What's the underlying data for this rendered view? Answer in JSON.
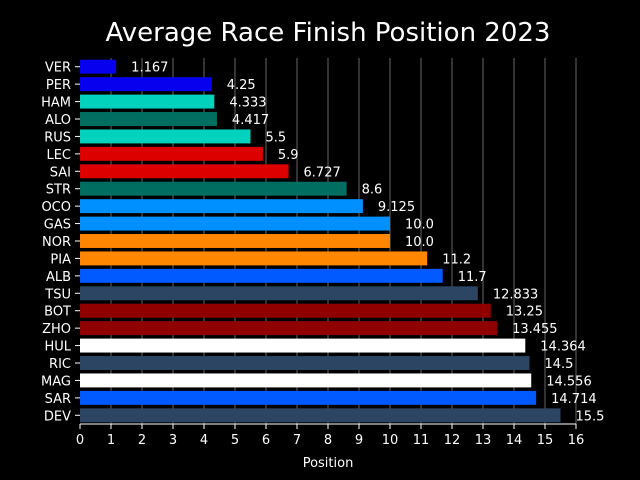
{
  "chart_data": {
    "type": "bar",
    "orientation": "horizontal",
    "title": "Average Race Finish Position 2023",
    "xlabel": "Position",
    "ylabel": "",
    "xlim": [
      0,
      16
    ],
    "xticks": [
      0,
      1,
      2,
      3,
      4,
      5,
      6,
      7,
      8,
      9,
      10,
      11,
      12,
      13,
      14,
      15,
      16
    ],
    "grid": "vertical",
    "categories": [
      "VER",
      "PER",
      "HAM",
      "ALO",
      "RUS",
      "LEC",
      "SAI",
      "STR",
      "OCO",
      "GAS",
      "NOR",
      "PIA",
      "ALB",
      "TSU",
      "BOT",
      "ZHO",
      "HUL",
      "RIC",
      "MAG",
      "SAR",
      "DEV"
    ],
    "values": [
      1.167,
      4.25,
      4.333,
      4.417,
      5.5,
      5.9,
      6.727,
      8.6,
      9.125,
      10.0,
      10.0,
      11.2,
      11.7,
      12.833,
      13.25,
      13.455,
      14.364,
      14.5,
      14.556,
      14.714,
      15.5
    ],
    "value_labels": [
      "1.167",
      "4.25",
      "4.333",
      "4.417",
      "5.5",
      "5.9",
      "6.727",
      "8.6",
      "9.125",
      "10.0",
      "10.0",
      "11.2",
      "11.7",
      "12.833",
      "13.25",
      "13.455",
      "14.364",
      "14.5",
      "14.556",
      "14.714",
      "15.5"
    ],
    "colors": [
      "#0600ef",
      "#0600ef",
      "#00d2be",
      "#006f62",
      "#00d2be",
      "#dc0000",
      "#dc0000",
      "#006f62",
      "#0090ff",
      "#0090ff",
      "#ff8700",
      "#ff8700",
      "#005aff",
      "#2b4562",
      "#900000",
      "#900000",
      "#ffffff",
      "#2b4562",
      "#ffffff",
      "#005aff",
      "#2b4562"
    ]
  }
}
